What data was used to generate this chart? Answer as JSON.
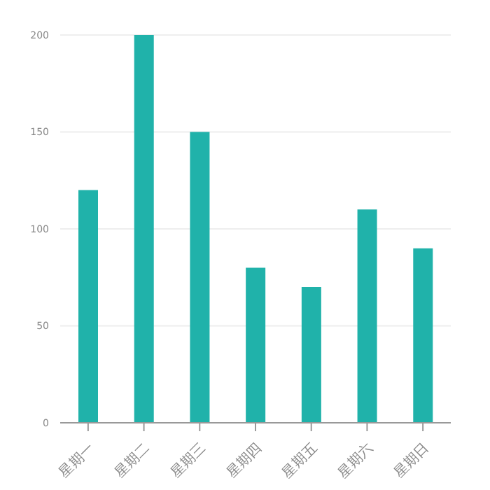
{
  "chart_data": {
    "type": "bar",
    "categories": [
      "星期一",
      "星期二",
      "星期三",
      "星期四",
      "星期五",
      "星期六",
      "星期日"
    ],
    "values": [
      120,
      200,
      150,
      80,
      70,
      110,
      90
    ],
    "color": "#20b2aa",
    "ylim": [
      0,
      200
    ],
    "yticks": [
      0,
      50,
      100,
      150,
      200
    ],
    "grid": "y"
  }
}
